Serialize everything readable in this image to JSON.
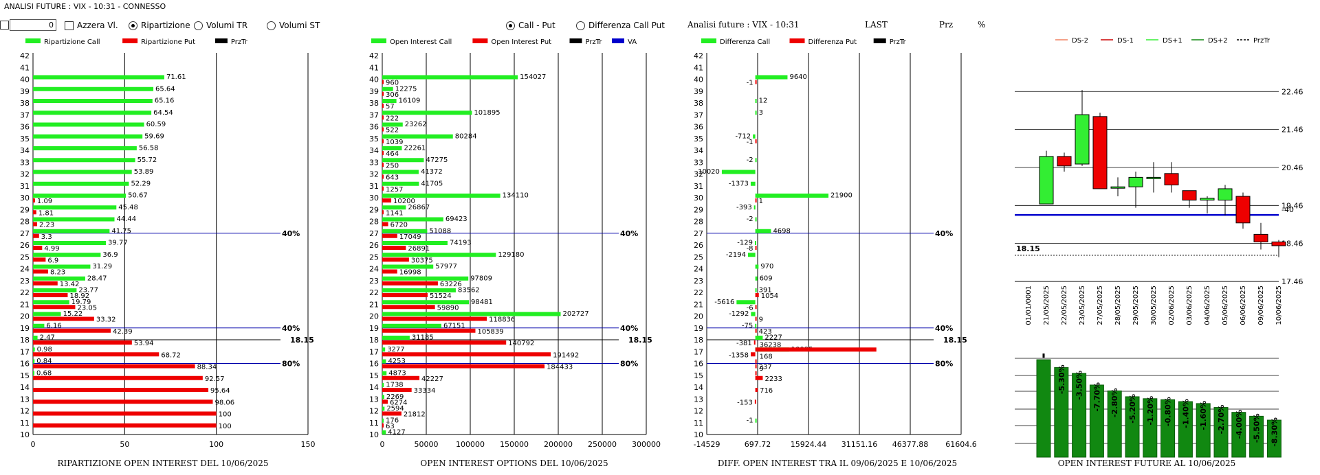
{
  "window_title": "ANALISI FUTURE : VIX - 10:31 - CONNESSO",
  "controls": {
    "input_value": "0",
    "azzera_label": "Azzera Vl.",
    "ripartizione_label": "Ripartizione",
    "volumi_tr_label": "Volumi TR",
    "volumi_st_label": "Volumi ST",
    "call_put_label": "Call - Put",
    "diff_call_put_label": "Differenza Call Put",
    "selected_mode": "Ripartizione",
    "selected_view": "Call - Put"
  },
  "header_info": {
    "title": "Analisi future : VIX - 10:31",
    "last": "LAST",
    "prz": "Prz",
    "pct": "%"
  },
  "colors": {
    "call": "#22ee22",
    "put": "#ee0000",
    "blue": "#0000cc",
    "dark_green": "#118811",
    "black": "#000000"
  },
  "chart_data": [
    {
      "type": "bar",
      "title": "RIPARTIZIONE OPEN INTEREST DEL 10/06/2025",
      "legend": [
        "Ripartizione Call",
        "Ripartizione Put",
        "PrzTr"
      ],
      "legend_colors": [
        "#22ee22",
        "#ee0000",
        "#000000"
      ],
      "orientation": "horizontal",
      "ylim": [
        10,
        42
      ],
      "xlim": [
        0,
        150
      ],
      "xticks": [
        "0",
        "50",
        "100",
        "150"
      ],
      "strikes": [
        40,
        39,
        38,
        37,
        36,
        35,
        34,
        33,
        32,
        31,
        30,
        29,
        28,
        27,
        26,
        25,
        24,
        23,
        22,
        21,
        20,
        19,
        18,
        17,
        16,
        15,
        14,
        13,
        12,
        11
      ],
      "call": [
        71.61,
        65.64,
        65.16,
        64.54,
        60.59,
        59.69,
        56.58,
        55.72,
        53.89,
        52.29,
        50.67,
        45.48,
        44.44,
        41.75,
        39.77,
        36.9,
        31.29,
        28.47,
        23.77,
        19.79,
        15.22,
        6.16,
        2.47,
        0.98,
        0.84,
        0.68,
        null,
        null,
        null,
        null
      ],
      "put": [
        null,
        null,
        null,
        null,
        null,
        null,
        null,
        null,
        null,
        null,
        1.09,
        1.81,
        2.23,
        3.3,
        4.99,
        6.9,
        8.23,
        13.42,
        18.92,
        23.05,
        33.32,
        42.39,
        53.94,
        68.72,
        88.34,
        92.57,
        95.64,
        98.06,
        100,
        100
      ],
      "hlines": [
        {
          "y": 27,
          "label": "40%",
          "color": "#0000aa"
        },
        {
          "y": 19,
          "label": "40%",
          "color": "#0000aa"
        },
        {
          "y": 18,
          "label": "18.15",
          "color": "#000000"
        },
        {
          "y": 16,
          "label": "80%",
          "color": "#0000aa"
        }
      ]
    },
    {
      "type": "bar",
      "title": "OPEN INTEREST OPTIONS DEL 10/06/2025",
      "legend": [
        "Open Interest Call",
        "Open Interest Put",
        "PrzTr",
        "VA"
      ],
      "legend_colors": [
        "#22ee22",
        "#ee0000",
        "#000000",
        "#0000cc"
      ],
      "orientation": "horizontal",
      "ylim": [
        10,
        42
      ],
      "xlim": [
        0,
        300000
      ],
      "xticks": [
        "0",
        "50000",
        "100000",
        "150000",
        "200000",
        "250000",
        "300000"
      ],
      "strikes": [
        40,
        39,
        38,
        37,
        36,
        35,
        34,
        33,
        32,
        31,
        30,
        29,
        28,
        27,
        26,
        25,
        24,
        23,
        22,
        21,
        20,
        19,
        18,
        17,
        16,
        15,
        14,
        13,
        12,
        11,
        10
      ],
      "call": [
        154027,
        12275,
        16109,
        101895,
        23262,
        80284,
        22261,
        47275,
        41372,
        41705,
        134110,
        26867,
        69423,
        51088,
        74193,
        129180,
        57977,
        97809,
        83562,
        98481,
        202727,
        67151,
        31185,
        3277,
        4253,
        4873,
        1738,
        2269,
        2594,
        176,
        4127
      ],
      "put": [
        960,
        306,
        57,
        222,
        522,
        1039,
        464,
        250,
        643,
        1257,
        10200,
        1141,
        6720,
        17049,
        26891,
        30375,
        16998,
        63226,
        51524,
        59890,
        118836,
        105839,
        140792,
        191492,
        184433,
        42227,
        33334,
        6274,
        21812,
        63,
        null
      ],
      "hlines": [
        {
          "y": 27,
          "label": "40%",
          "color": "#0000aa"
        },
        {
          "y": 19,
          "label": "40%",
          "color": "#0000aa"
        },
        {
          "y": 18,
          "label": "18.15",
          "color": "#000000"
        },
        {
          "y": 16,
          "label": "80%",
          "color": "#0000aa"
        }
      ]
    },
    {
      "type": "bar",
      "title": "DIFF. OPEN INTEREST TRA IL 09/06/2025 E 10/06/2025",
      "legend": [
        "Differenza Call",
        "Differenza Put",
        "PrzTr"
      ],
      "legend_colors": [
        "#22ee22",
        "#ee0000",
        "#000000"
      ],
      "orientation": "horizontal",
      "ylim": [
        10,
        42
      ],
      "xlim": [
        -14529,
        61604.6
      ],
      "xticks": [
        "-14529",
        "697.72",
        "15924.44",
        "31151.16",
        "46377.88",
        "61604.6"
      ],
      "strikes": [
        40,
        39,
        38,
        37,
        36,
        35,
        34,
        33,
        32,
        31,
        30,
        29,
        28,
        27,
        26,
        25,
        24,
        23,
        22,
        21,
        20,
        19,
        18,
        17,
        16,
        15,
        14,
        13,
        12,
        11
      ],
      "call": [
        9640,
        null,
        12,
        3,
        null,
        -712,
        null,
        -2,
        -10020,
        -1373,
        21900,
        -393,
        -2,
        4698,
        -129,
        -2194,
        970,
        609,
        391,
        -5616,
        -1292,
        -75,
        2227,
        10095,
        null,
        null,
        null,
        null,
        null,
        -1
      ],
      "put": [
        -1,
        null,
        null,
        null,
        null,
        -1,
        null,
        null,
        null,
        null,
        1,
        null,
        null,
        null,
        -8,
        null,
        null,
        null,
        1054,
        -6,
        9,
        423,
        -381,
        -1358,
        237,
        2233,
        716,
        -153,
        null,
        null
      ],
      "put_extra": [
        {
          "strike": 17,
          "value": 36238
        },
        {
          "strike": 16,
          "value": 168
        },
        {
          "strike": 15,
          "value": 9
        }
      ],
      "hlines": [
        {
          "y": 27,
          "label": "40%",
          "color": "#0000aa"
        },
        {
          "y": 19,
          "label": "40%",
          "color": "#0000aa"
        },
        {
          "y": 18,
          "label": "18.15",
          "color": "#000000"
        },
        {
          "y": 16,
          "label": "80%",
          "color": "#0000aa"
        }
      ]
    },
    {
      "type": "candlestick",
      "legend": [
        "DS-2",
        "DS-1",
        "DS+1",
        "DS+2",
        "PrzTr"
      ],
      "legend_colors": [
        "#f08060",
        "#cc0000",
        "#33ee33",
        "#118811",
        "#000000"
      ],
      "ylim": [
        17.46,
        22.7
      ],
      "yticks": [
        "22.46",
        "21.46",
        "20.46",
        "19.46",
        "18.46",
        "17.46"
      ],
      "dates": [
        "01/01/0001",
        "21/05/2025",
        "22/05/2025",
        "23/05/2025",
        "27/05/2025",
        "28/05/2025",
        "29/05/2025",
        "30/05/2025",
        "02/06/2025",
        "03/06/2025",
        "04/06/2025",
        "05/06/2025",
        "06/06/2025",
        "09/06/2025",
        "10/06/2025"
      ],
      "candles": [
        null,
        {
          "o": 19.5,
          "c": 20.75,
          "h": 20.9,
          "l": 19.5,
          "up": true
        },
        {
          "o": 20.75,
          "c": 20.5,
          "h": 20.85,
          "l": 20.35,
          "up": false
        },
        {
          "o": 20.55,
          "c": 21.85,
          "h": 22.5,
          "l": 20.5,
          "up": true
        },
        {
          "o": 21.8,
          "c": 19.9,
          "h": 21.9,
          "l": 19.9,
          "up": false
        },
        {
          "o": 19.95,
          "c": 19.95,
          "h": 20.2,
          "l": 19.7,
          "up": true
        },
        {
          "o": 19.95,
          "c": 20.2,
          "h": 20.35,
          "l": 19.4,
          "up": true
        },
        {
          "o": 20.2,
          "c": 20.2,
          "h": 20.6,
          "l": 19.8,
          "up": true
        },
        {
          "o": 20.3,
          "c": 20.0,
          "h": 20.6,
          "l": 19.8,
          "up": false
        },
        {
          "o": 19.85,
          "c": 19.6,
          "h": 19.85,
          "l": 19.4,
          "up": false
        },
        {
          "o": 19.65,
          "c": 19.6,
          "h": 19.7,
          "l": 19.25,
          "up": true
        },
        {
          "o": 19.6,
          "c": 19.9,
          "h": 20.0,
          "l": 19.2,
          "up": true
        },
        {
          "o": 19.7,
          "c": 19.0,
          "h": 19.8,
          "l": 18.85,
          "up": false
        },
        {
          "o": 18.7,
          "c": 18.5,
          "h": 19.0,
          "l": 18.3,
          "up": false
        },
        {
          "o": 18.5,
          "c": 18.4,
          "h": 18.55,
          "l": 18.1,
          "up": false
        }
      ],
      "blue_line": 19.21,
      "blue_label": "-40",
      "przTr_line": 18.15,
      "przTr_label": "18.15"
    },
    {
      "type": "bar",
      "title": "OPEN INTEREST FUTURE AL 10/06/2025",
      "values": [
        100,
        92,
        86,
        74,
        68,
        62,
        60,
        59,
        57,
        55,
        51,
        46,
        42,
        38
      ],
      "labels": [
        "",
        "-5.30%",
        "-3.50%",
        "-7.70%",
        "-2.80%",
        "-5.20%",
        "-1.20%",
        "-0.80%",
        "-1.40%",
        "-1.60%",
        "-2.70%",
        "-4.00%",
        "-5.50%",
        "-8.30%"
      ]
    }
  ]
}
